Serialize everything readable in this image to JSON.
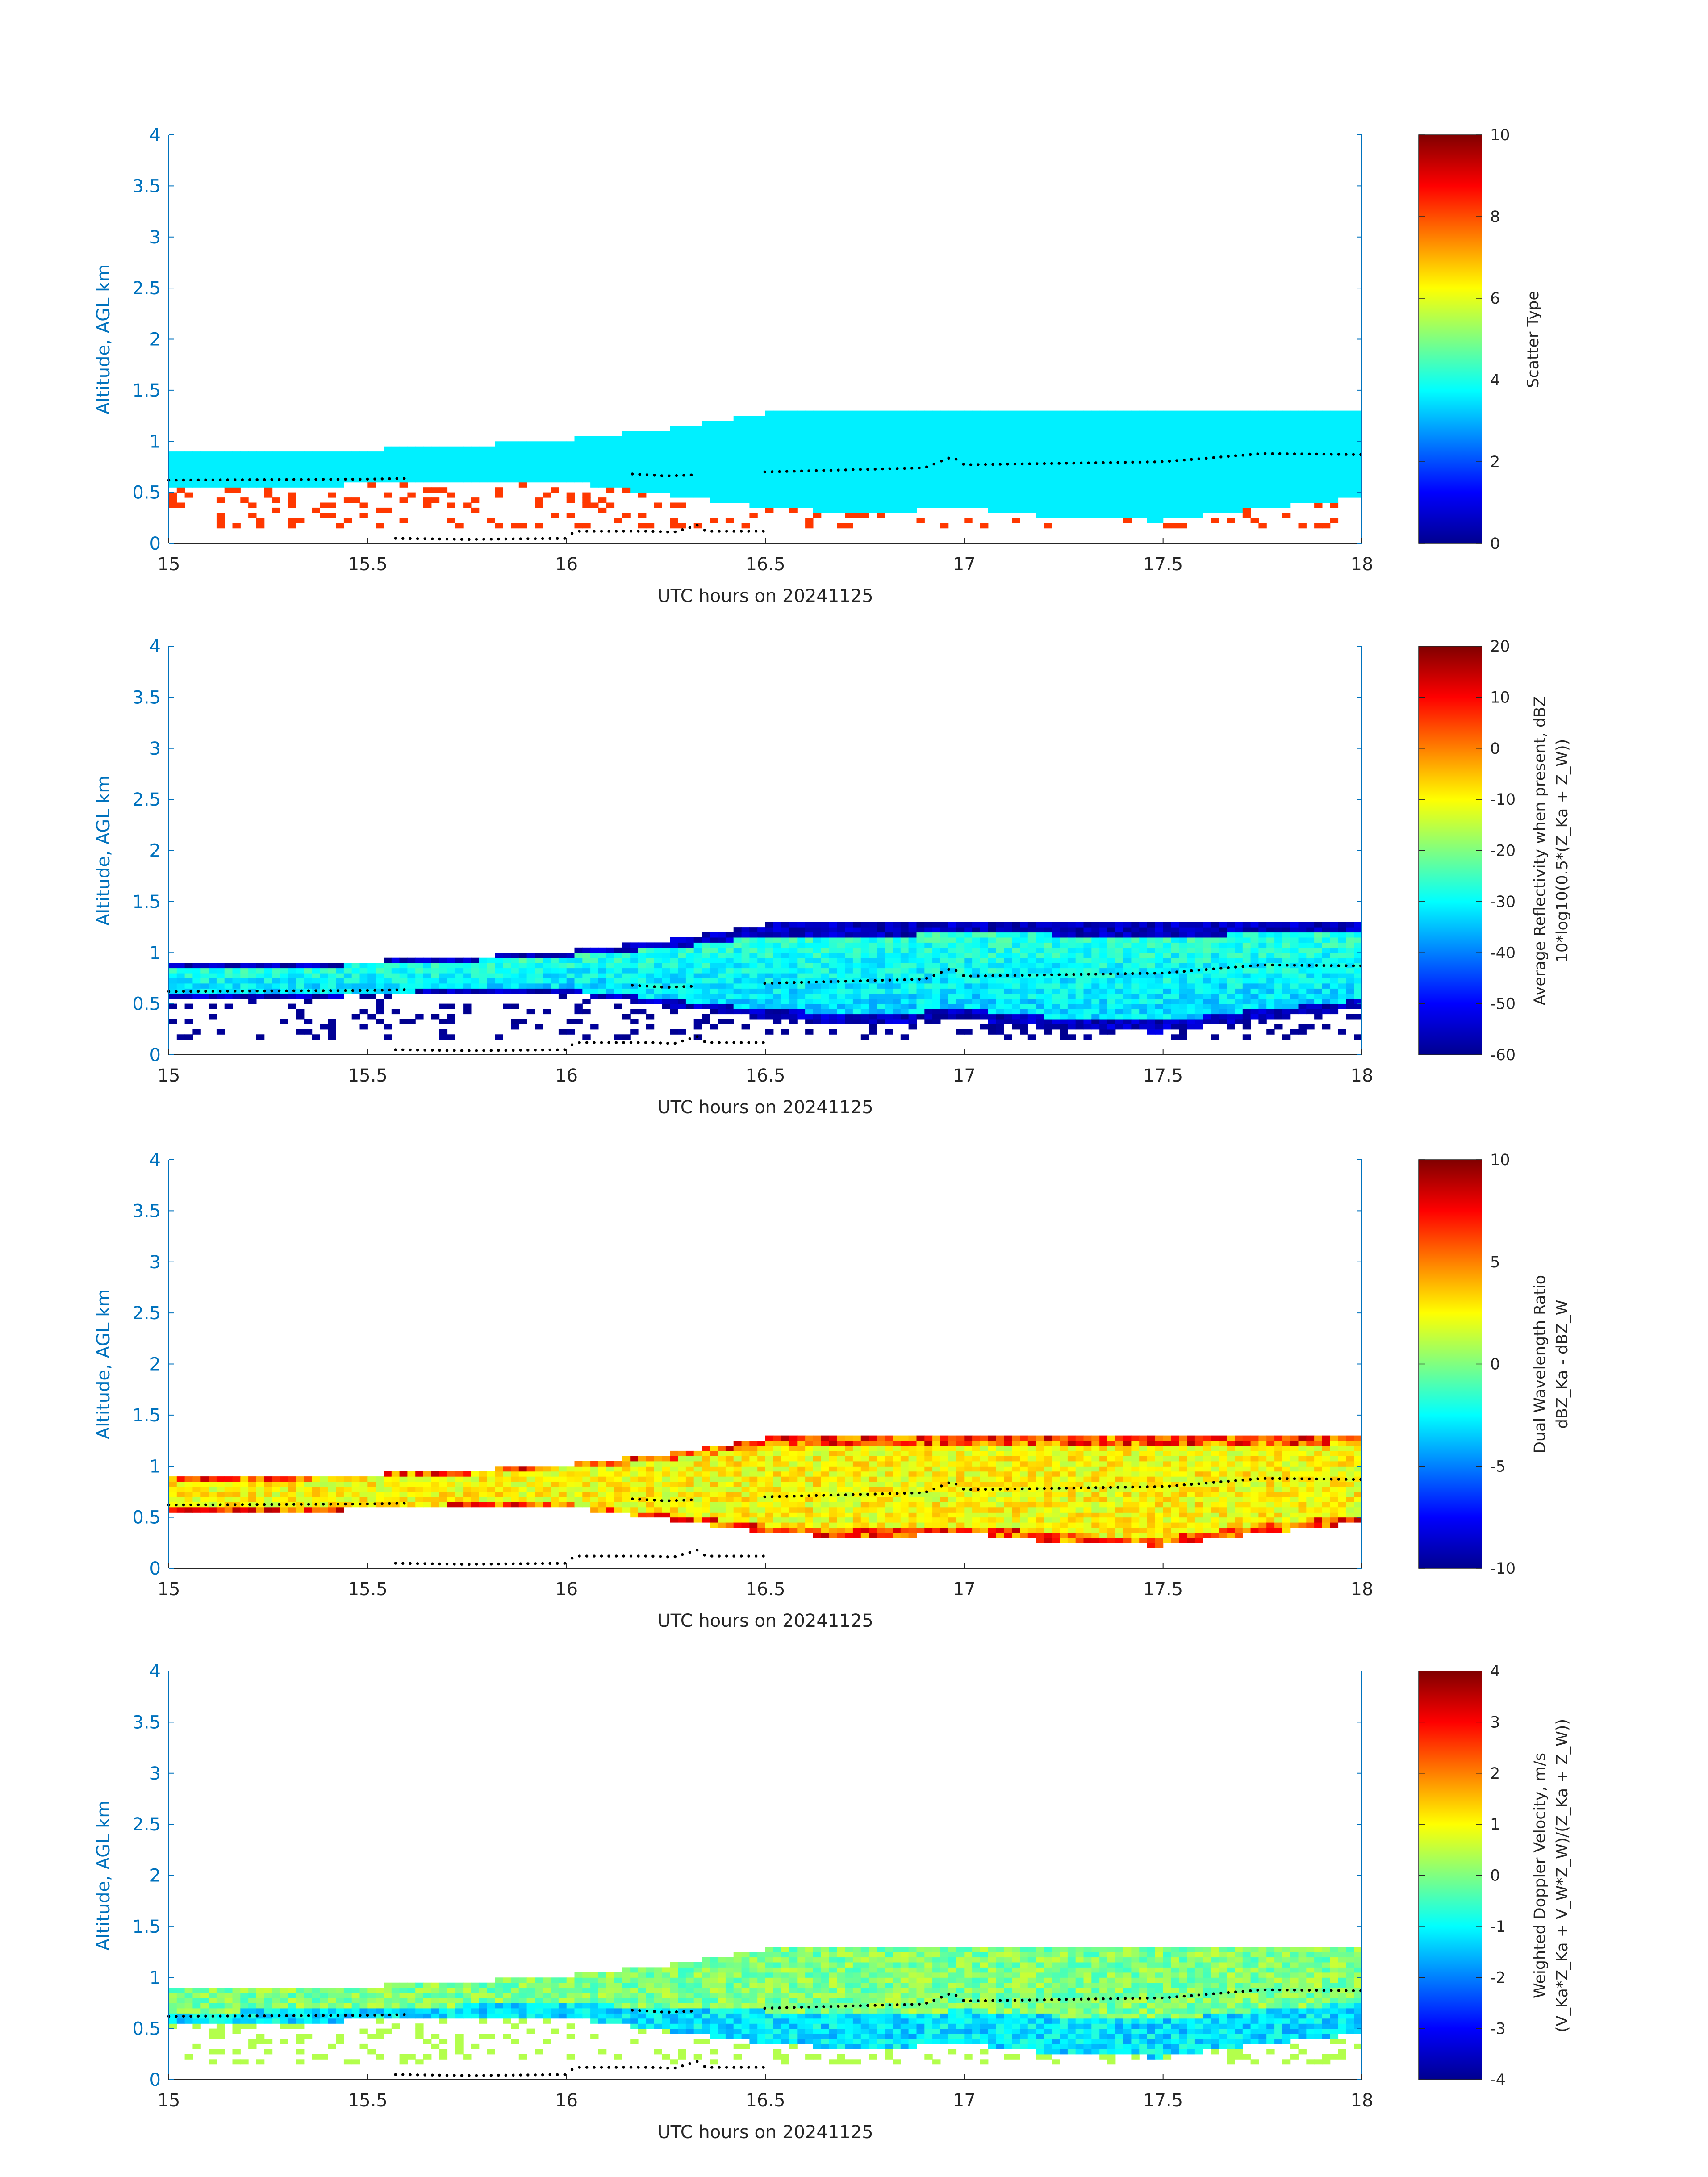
{
  "chart_data": [
    {
      "type": "heatmap",
      "panel": "scatter-type",
      "xlabel": "UTC hours on 20241125",
      "ylabel": "Altitude, AGL km",
      "xlim": [
        15,
        18
      ],
      "ylim": [
        0,
        4
      ],
      "x_ticks": [
        "15",
        "15.5",
        "16",
        "16.5",
        "17",
        "17.5",
        "18"
      ],
      "y_ticks": [
        "0",
        "0.5",
        "1",
        "1.5",
        "2",
        "2.5",
        "3",
        "3.5",
        "4"
      ],
      "colorbar": {
        "label_lines": [
          "Scatter Type"
        ],
        "clim": [
          0,
          10
        ],
        "ticks": [
          "0",
          "2",
          "4",
          "6",
          "8",
          "10"
        ],
        "colormap": "jet"
      },
      "field": {
        "kind": "categorical",
        "main_value": 3.6,
        "secondary_value": 8.2,
        "secondary_regions": "below cloud base, 0.1-0.6 km"
      }
    },
    {
      "type": "heatmap",
      "panel": "reflectivity",
      "xlabel": "UTC hours on 20241125",
      "ylabel": "Altitude, AGL km",
      "xlim": [
        15,
        18
      ],
      "ylim": [
        0,
        4
      ],
      "x_ticks": [
        "15",
        "15.5",
        "16",
        "16.5",
        "17",
        "17.5",
        "18"
      ],
      "y_ticks": [
        "0",
        "0.5",
        "1",
        "1.5",
        "2",
        "2.5",
        "3",
        "3.5",
        "4"
      ],
      "colorbar": {
        "label_lines": [
          "Average Reflectivity when present, dBZ",
          "10*log10(0.5*(Z_Ka + Z_W))"
        ],
        "clim": [
          -60,
          20
        ],
        "ticks": [
          "-60",
          "-50",
          "-40",
          "-30",
          "-20",
          "-10",
          "0",
          "10",
          "20"
        ],
        "colormap": "jet"
      },
      "field": {
        "kind": "continuous",
        "core_value_dbz": -30,
        "edge_value_dbz": -55
      }
    },
    {
      "type": "heatmap",
      "panel": "dual-wavelength-ratio",
      "xlabel": "UTC hours on 20241125",
      "ylabel": "Altitude, AGL km",
      "xlim": [
        15,
        18
      ],
      "ylim": [
        0,
        4
      ],
      "x_ticks": [
        "15",
        "15.5",
        "16",
        "16.5",
        "17",
        "17.5",
        "18"
      ],
      "y_ticks": [
        "0",
        "0.5",
        "1",
        "1.5",
        "2",
        "2.5",
        "3",
        "3.5",
        "4"
      ],
      "colorbar": {
        "label_lines": [
          "Dual Wavelength Ratio",
          "dBZ_Ka - dBZ_W"
        ],
        "clim": [
          -10,
          10
        ],
        "ticks": [
          "-10",
          "-5",
          "0",
          "5",
          "10"
        ],
        "colormap": "jet"
      },
      "field": {
        "kind": "continuous",
        "core_value_db": 2.5,
        "edge_value_db": 6
      }
    },
    {
      "type": "heatmap",
      "panel": "doppler-velocity",
      "xlabel": "UTC hours on 20241125",
      "ylabel": "Altitude, AGL km",
      "xlim": [
        15,
        18
      ],
      "ylim": [
        0,
        4
      ],
      "x_ticks": [
        "15",
        "15.5",
        "16",
        "16.5",
        "17",
        "17.5",
        "18"
      ],
      "y_ticks": [
        "0",
        "0.5",
        "1",
        "1.5",
        "2",
        "2.5",
        "3",
        "3.5",
        "4"
      ],
      "colorbar": {
        "label_lines": [
          "Weighted Doppler Velocity, m/s",
          "(V_Ka*Z_Ka + V_W*Z_W)/(Z_Ka + Z_W))"
        ],
        "clim": [
          -4,
          4
        ],
        "ticks": [
          "-4",
          "-3",
          "-2",
          "-1",
          "0",
          "1",
          "2",
          "3",
          "4"
        ],
        "colormap": "jet"
      },
      "field": {
        "kind": "continuous",
        "core_value_ms": 0.0,
        "lower_value_ms": -1.2
      }
    }
  ],
  "cloud_layer": {
    "times": [
      15.0,
      15.25,
      15.5,
      15.75,
      16.0,
      16.25,
      16.5,
      16.75,
      17.0,
      17.25,
      17.5,
      17.75,
      18.0
    ],
    "top_km": [
      0.88,
      0.9,
      0.92,
      0.96,
      1.02,
      1.12,
      1.28,
      1.28,
      1.3,
      1.3,
      1.28,
      1.3,
      1.32
    ],
    "base_km": [
      0.55,
      0.56,
      0.58,
      0.6,
      0.6,
      0.48,
      0.35,
      0.3,
      0.35,
      0.25,
      0.22,
      0.35,
      0.45
    ]
  },
  "markers": {
    "upper_series": {
      "color": "#000000",
      "times": [
        15.0,
        15.5,
        16.17,
        16.25,
        16.5,
        16.9,
        16.97,
        17.0,
        17.5,
        17.75,
        18.0
      ],
      "heights_km": [
        0.62,
        0.63,
        0.68,
        0.66,
        0.7,
        0.74,
        0.85,
        0.77,
        0.8,
        0.88,
        0.87
      ],
      "gaps": [
        [
          15.6,
          15.85
        ],
        [
          15.85,
          16.15
        ],
        [
          16.32,
          16.48
        ]
      ]
    },
    "lower_series": {
      "color": "#000000",
      "times": [
        15.57,
        15.75,
        16.0,
        16.02,
        16.12,
        16.21,
        16.27,
        16.33,
        16.35,
        16.5
      ],
      "heights_km": [
        0.05,
        0.04,
        0.05,
        0.12,
        0.12,
        0.12,
        0.11,
        0.18,
        0.12,
        0.12
      ]
    }
  }
}
